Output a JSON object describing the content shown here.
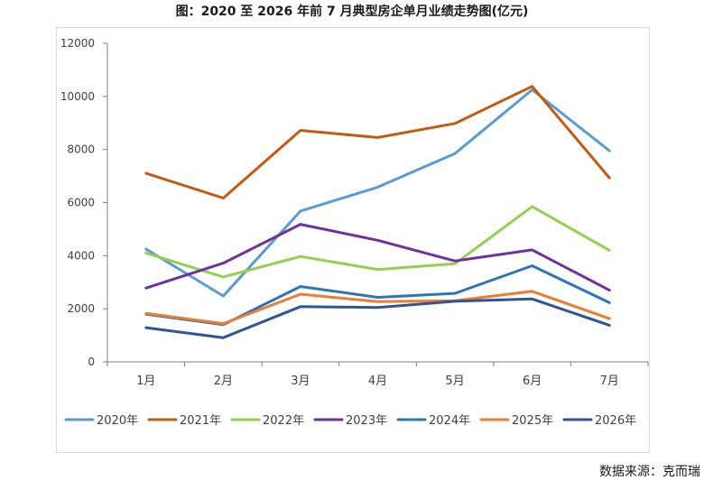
{
  "title": "图：2020 至 2026 年前 7 月典型房企单月业绩走势图(亿元)",
  "source": "数据来源：克而瑞",
  "chart_data": {
    "type": "line",
    "title": "图：2020 至 2026 年前 7 月典型房企单月业绩走势图(亿元)",
    "xlabel": "",
    "ylabel": "",
    "categories": [
      "1月",
      "2月",
      "3月",
      "4月",
      "5月",
      "6月",
      "7月"
    ],
    "ylim": [
      0,
      12000
    ],
    "yticks": [
      0,
      2000,
      4000,
      6000,
      8000,
      10000,
      12000
    ],
    "grid": false,
    "legend": "bottom",
    "series": [
      {
        "name": "2020年",
        "color": "#5b9bd5",
        "values": [
          4250,
          2480,
          5680,
          6580,
          7850,
          10250,
          7950
        ]
      },
      {
        "name": "2021年",
        "color": "#c55a11",
        "values": [
          7100,
          6170,
          8720,
          8450,
          8980,
          10380,
          6930
        ]
      },
      {
        "name": "2022年",
        "color": "#92d050",
        "values": [
          4100,
          3200,
          3970,
          3480,
          3700,
          5850,
          4200
        ]
      },
      {
        "name": "2023年",
        "color": "#7030a0",
        "values": [
          2780,
          3720,
          5180,
          4580,
          3800,
          4220,
          2700
        ]
      },
      {
        "name": "2024年",
        "color": "#2e75b6",
        "values": [
          1800,
          1400,
          2840,
          2430,
          2580,
          3620,
          2230
        ]
      },
      {
        "name": "2025年",
        "color": "#ed7d31",
        "values": [
          1830,
          1440,
          2550,
          2270,
          2300,
          2660,
          1630
        ]
      },
      {
        "name": "2026年",
        "color": "#2f5597",
        "values": [
          1290,
          910,
          2080,
          2050,
          2280,
          2370,
          1380
        ]
      }
    ]
  }
}
